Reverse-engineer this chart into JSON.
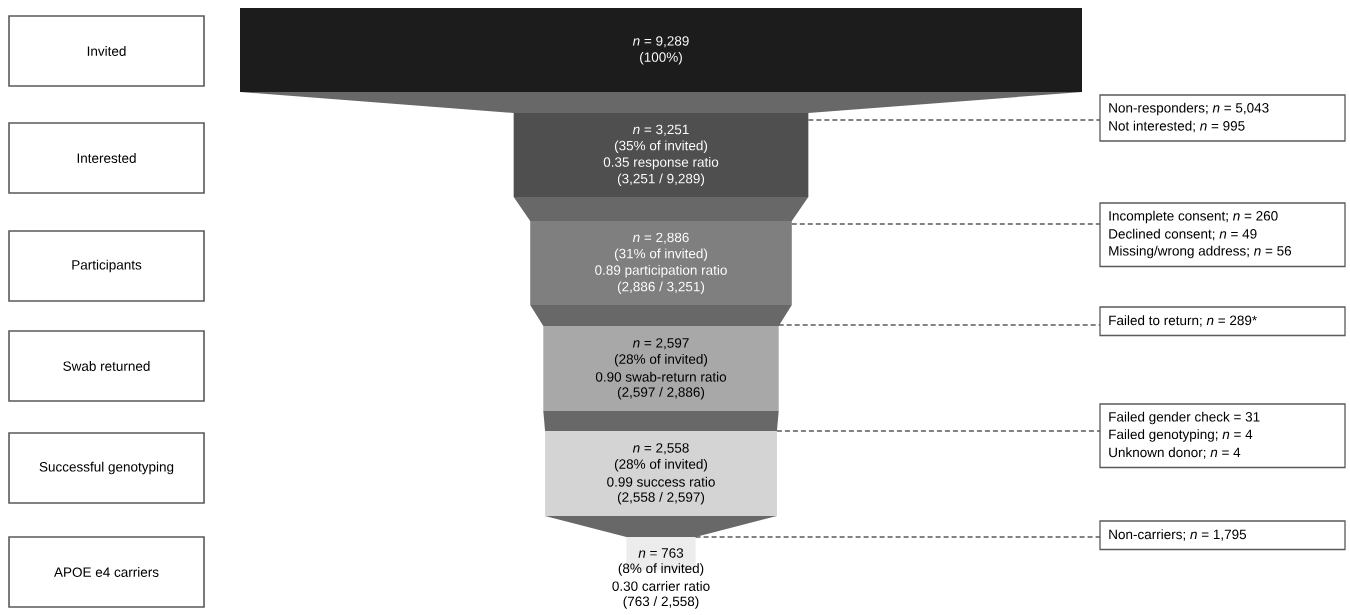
{
  "chart_data": {
    "type": "other",
    "categories": [
      "Invited",
      "Interested",
      "Participants",
      "Swab returned",
      "Successful genotyping",
      "APOE e4 carriers"
    ],
    "values": [
      9289,
      3251,
      2886,
      2597,
      2558,
      763
    ],
    "value_labels": [
      "*n* = 9,289",
      "*n* = 3,251",
      "*n* = 2,886",
      "*n* = 2,597",
      "*n* = 2,558",
      "*n* = 763"
    ],
    "colors": [
      "#1c1c1c",
      "#4f4f4f",
      "#7f7f7f",
      "#a8a8a8",
      "#d4d4d4",
      "#ececec"
    ],
    "annotations": [
      "(100%)",
      "(35% of invited)",
      "0.35 response ratio",
      "(3,251 / 9,289)",
      "(31% of invited)",
      "0.89 participation ratio",
      "(2,886 / 3,251)",
      "(28% of invited)",
      "0.90 swab-return ratio",
      "(2,597 / 2,886)",
      "(28% of invited)",
      "0.99 success ratio",
      "(2,558 / 2,597)",
      "(8% of invited)",
      "0.30 carrier ratio",
      "(763 / 2,558)",
      "Non-responders; *n* = 5,043",
      "Not interested; *n* = 995",
      "Incomplete consent; *n* = 260",
      "Declined consent; *n* = 49",
      "Missing/wrong address; *n* = 56",
      "Failed to return; *n* = 289*",
      "Failed gender check = 31",
      "Failed genotyping; *n* = 4",
      "Unknown donor; *n* = 4",
      "Non-carriers; *n* = 1,795"
    ]
  }
}
